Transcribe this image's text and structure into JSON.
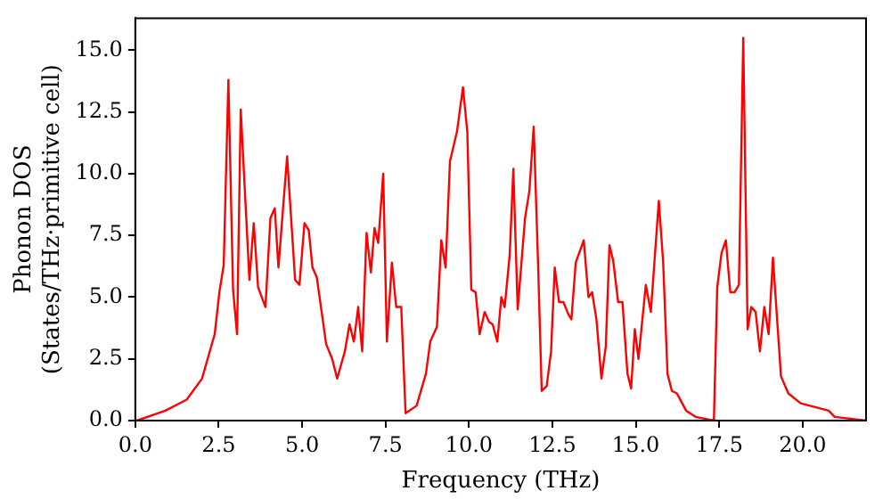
{
  "chart_data": {
    "type": "line",
    "xlabel": "Frequency (THz)",
    "ylabel": "Phonon DOS\n(States/THz·primitive cell)",
    "series": [
      {
        "color": "#ff0000",
        "x": [
          0.05,
          0.9,
          1.54,
          2.0,
          2.38,
          2.52,
          2.65,
          2.79,
          2.93,
          3.05,
          3.16,
          3.42,
          3.55,
          3.68,
          3.9,
          4.05,
          4.18,
          4.29,
          4.55,
          4.79,
          4.92,
          5.07,
          5.2,
          5.31,
          5.44,
          5.72,
          5.9,
          6.05,
          6.28,
          6.42,
          6.55,
          6.68,
          6.8,
          6.93,
          7.06,
          7.17,
          7.28,
          7.43,
          7.54,
          7.69,
          7.82,
          7.97,
          8.1,
          8.43,
          8.71,
          8.84,
          9.04,
          9.17,
          9.3,
          9.43,
          9.64,
          9.82,
          9.95,
          10.07,
          10.2,
          10.32,
          10.47,
          10.6,
          10.71,
          10.85,
          10.97,
          11.07,
          11.22,
          11.33,
          11.46,
          11.68,
          11.81,
          11.94,
          12.07,
          12.18,
          12.33,
          12.46,
          12.57,
          12.7,
          12.83,
          12.98,
          13.07,
          13.2,
          13.44,
          13.58,
          13.69,
          13.82,
          13.97,
          14.1,
          14.21,
          14.32,
          14.47,
          14.6,
          14.75,
          14.86,
          14.97,
          15.08,
          15.3,
          15.45,
          15.69,
          15.82,
          15.95,
          16.08,
          16.23,
          16.51,
          16.79,
          17.34,
          17.44,
          17.57,
          17.7,
          17.83,
          17.96,
          18.09,
          18.22,
          18.35,
          18.46,
          18.59,
          18.72,
          18.85,
          18.98,
          19.11,
          19.35,
          19.57,
          19.94,
          20.78,
          20.96,
          21.9
        ],
        "values": [
          0,
          0.4,
          0.85,
          1.7,
          3.5,
          5.2,
          6.3,
          13.8,
          5.3,
          3.5,
          12.6,
          5.7,
          8.0,
          5.4,
          4.6,
          8.2,
          8.6,
          6.2,
          10.7,
          5.7,
          5.5,
          8.0,
          7.7,
          6.2,
          5.8,
          3.1,
          2.5,
          1.7,
          2.8,
          3.9,
          3.2,
          4.6,
          2.8,
          7.6,
          6.0,
          7.8,
          7.2,
          10.0,
          3.2,
          6.4,
          4.6,
          4.6,
          0.3,
          0.6,
          1.9,
          3.2,
          3.8,
          7.3,
          6.2,
          10.5,
          11.7,
          13.5,
          11.7,
          5.3,
          5.2,
          3.5,
          4.4,
          4.0,
          3.9,
          3.2,
          5.0,
          4.6,
          6.7,
          10.2,
          4.5,
          8.2,
          9.3,
          11.9,
          6.4,
          1.2,
          1.4,
          2.8,
          6.2,
          4.8,
          4.8,
          4.3,
          4.1,
          6.4,
          7.3,
          5.0,
          5.2,
          4.1,
          1.7,
          3.0,
          7.1,
          6.5,
          4.8,
          4.8,
          1.9,
          1.3,
          3.7,
          2.5,
          5.5,
          4.4,
          8.9,
          6.4,
          1.9,
          1.2,
          1.1,
          0.4,
          0.15,
          0,
          5.4,
          6.8,
          7.3,
          5.2,
          5.2,
          5.5,
          15.5,
          3.7,
          4.6,
          4.4,
          2.8,
          4.6,
          3.5,
          6.6,
          1.8,
          1.1,
          0.7,
          0.4,
          0.15,
          0
        ]
      }
    ],
    "xlim": [
      0,
      21.9
    ],
    "ylim": [
      0,
      16.3
    ],
    "xticks": [
      {
        "value": 0,
        "label": "0.0"
      },
      {
        "value": 2.5,
        "label": "2.5"
      },
      {
        "value": 5,
        "label": "5.0"
      },
      {
        "value": 7.5,
        "label": "7.5"
      },
      {
        "value": 10,
        "label": "10.0"
      },
      {
        "value": 12.5,
        "label": "12.5"
      },
      {
        "value": 15,
        "label": "15.0"
      },
      {
        "value": 17.5,
        "label": "17.5"
      },
      {
        "value": 20,
        "label": "20.0"
      }
    ],
    "yticks": [
      {
        "value": 0,
        "label": "0.0"
      },
      {
        "value": 2.5,
        "label": "2.5"
      },
      {
        "value": 5,
        "label": "5.0"
      },
      {
        "value": 7.5,
        "label": "7.5"
      },
      {
        "value": 10,
        "label": "10.0"
      },
      {
        "value": 12.5,
        "label": "12.5"
      },
      {
        "value": 15,
        "label": "15.0"
      }
    ],
    "grid": false,
    "legend": false,
    "marker": "none",
    "line_style": "solid"
  }
}
